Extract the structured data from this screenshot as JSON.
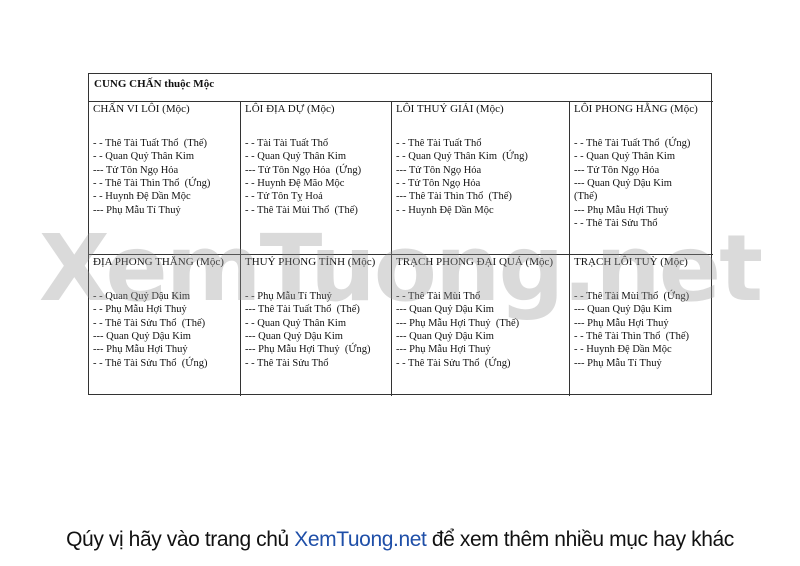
{
  "table": {
    "title": "CUNG CHẤN thuộc Mộc",
    "rows": [
      [
        {
          "heading": "CHẤN VI LÔI (Mộc)",
          "lines": [
            "- - Thê Tài Tuất Thổ  (Thế)",
            "- - Quan Quỷ Thân Kim",
            "--- Tử Tôn Ngọ Hỏa",
            "- - Thê Tài Thìn Thổ  (Ứng)",
            "- - Huynh Đệ Dần Mộc",
            "--- Phụ Mẫu Tí Thuỷ"
          ]
        },
        {
          "heading": "LÔI ĐỊA DỰ (Mộc)",
          "lines": [
            "- - Tài Tài Tuất Thổ",
            "- - Quan Quỷ Thân Kim",
            "--- Tử Tôn Ngọ Hỏa  (Ứng)",
            "- - Huynh Đệ Mão Mộc",
            "- - Tử Tôn Tỵ Hoả",
            "- - Thê Tài Mùi Thổ  (Thế)"
          ]
        },
        {
          "heading": "LÔI THUỶ GIẢI (Mộc)",
          "lines": [
            "- - Thê Tài Tuất Thổ",
            "- - Quan Quỷ Thân Kim  (Ứng)",
            "--- Tử Tôn Ngọ Hỏa",
            "- - Tử Tôn Ngọ Hỏa",
            "--- Thê Tài Thìn Thổ  (Thế)",
            "- - Huynh Đệ Dần Mộc"
          ]
        },
        {
          "heading": "LÔI PHONG HẰNG (Mộc)",
          "lines": [
            "- - Thê Tài Tuất Thổ  (Ứng)",
            "- - Quan Quỷ Thân Kim",
            "--- Tử Tôn Ngọ Hỏa",
            "--- Quan Quỷ Dậu Kim",
            "(Thế)",
            "--- Phụ Mẫu Hợi Thuỷ",
            "- - Thê Tài Sửu Thổ"
          ]
        }
      ],
      [
        {
          "heading": "ĐỊA PHONG THĂNG (Mộc)",
          "lines": [
            "- - Quan Quỷ Dậu Kim",
            "- - Phụ Mẫu Hợi Thuỷ",
            "- - Thê Tài Sửu Thổ  (Thế)",
            "--- Quan Quỷ Dậu Kim",
            "--- Phụ Mẫu Hợi Thuỷ",
            "- - Thê Tài Sửu Thổ  (Ứng)"
          ]
        },
        {
          "heading": "THUỶ PHONG TỈNH (Mộc)",
          "lines": [
            "- - Phụ Mẫu Tí Thuỷ",
            "--- Thê Tài Tuất Thổ  (Thế)",
            "- - Quan Quỷ Thân Kim",
            "--- Quan Quỷ Dậu Kim",
            "--- Phụ Mẫu Hợi Thuỷ  (Ứng)",
            "- - Thê Tài Sửu Thổ"
          ]
        },
        {
          "heading": "TRẠCH PHONG ĐẠI QUÁ (Mộc)",
          "lines": [
            "- - Thê Tài Mùi Thổ",
            "--- Quan Quỷ Dậu Kim",
            "--- Phụ Mẫu Hợi Thuỷ  (Thế)",
            "--- Quan Quỷ Dậu Kim",
            "--- Phụ Mẫu Hợi Thuỷ",
            "- - Thê Tài Sửu Thổ  (Ứng)"
          ]
        },
        {
          "heading": "TRẠCH LÔI TUỲ (Mộc)",
          "lines": [
            "- - Thê Tài Mùi Thổ  (Ứng)",
            "--- Quan Quỷ Dậu Kim",
            "--- Phụ Mẫu Hợi Thuỷ",
            "- - Thê Tài Thìn Thổ  (Thế)",
            "- - Huynh Đệ Dần Mộc",
            "--- Phụ Mẫu Tí Thuỷ"
          ]
        }
      ]
    ]
  },
  "watermark": "XemTuong.net",
  "footer": {
    "before": "Qúy vị hãy vào trang chủ ",
    "link": "XemTuong.net",
    "after": " để xem thêm nhiều mục hay khác"
  }
}
